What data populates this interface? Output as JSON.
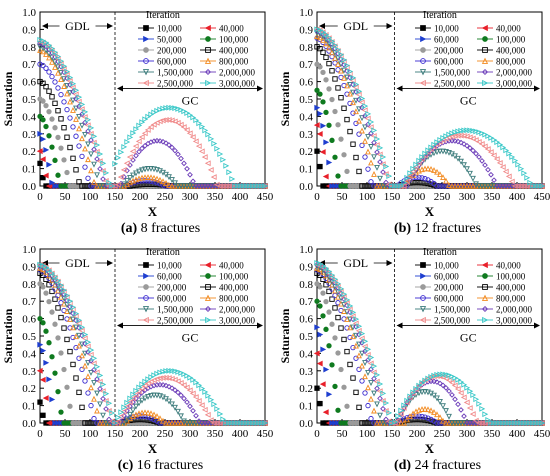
{
  "chart_data": [
    {
      "type": "scatter",
      "caption": {
        "label": "(a)",
        "text": " 8 fractures"
      },
      "xlabel": "X",
      "ylabel": "Saturation",
      "xlim": [
        0,
        450
      ],
      "ylim": [
        0,
        1.0
      ],
      "xticks": [
        "0",
        "50",
        "100",
        "150",
        "200",
        "250",
        "300",
        "350",
        "400",
        "450"
      ],
      "yticks": [
        "0.0",
        "0.1",
        "0.2",
        "0.3",
        "0.4",
        "0.5",
        "0.6",
        "0.7",
        "0.8",
        "0.9",
        "1.0"
      ],
      "legend_title": "Iteration",
      "annotations": {
        "left_region": "GDL",
        "right_region": "GC",
        "divider_x": 150
      },
      "series": [
        {
          "name": "10,000",
          "gdl_peak": 0.13,
          "gdl_end": 8,
          "gc_peak": 0.0,
          "gc_center": 250,
          "gc_width": 40
        },
        {
          "name": "40,000",
          "gdl_peak": 0.2,
          "gdl_end": 15,
          "gc_peak": 0.0,
          "gc_center": 250,
          "gc_width": 40
        },
        {
          "name": "50,000",
          "gdl_peak": 0.3,
          "gdl_end": 25,
          "gc_peak": 0.0,
          "gc_center": 250,
          "gc_width": 40
        },
        {
          "name": "100,000",
          "gdl_peak": 0.4,
          "gdl_end": 40,
          "gc_peak": 0.0,
          "gc_center": 250,
          "gc_width": 40
        },
        {
          "name": "200,000",
          "gdl_peak": 0.5,
          "gdl_end": 60,
          "gc_peak": 0.0,
          "gc_center": 250,
          "gc_width": 40
        },
        {
          "name": "400,000",
          "gdl_peak": 0.6,
          "gdl_end": 80,
          "gc_peak": 0.01,
          "gc_center": 220,
          "gc_width": 40
        },
        {
          "name": "600,000",
          "gdl_peak": 0.7,
          "gdl_end": 100,
          "gc_peak": 0.03,
          "gc_center": 210,
          "gc_width": 40
        },
        {
          "name": "800,000",
          "gdl_peak": 0.78,
          "gdl_end": 110,
          "gc_peak": 0.05,
          "gc_center": 215,
          "gc_width": 45
        },
        {
          "name": "1,500,000",
          "gdl_peak": 0.8,
          "gdl_end": 120,
          "gc_peak": 0.1,
          "gc_center": 220,
          "gc_width": 55
        },
        {
          "name": "2,000,000",
          "gdl_peak": 0.82,
          "gdl_end": 130,
          "gc_peak": 0.26,
          "gc_center": 235,
          "gc_width": 75
        },
        {
          "name": "2,500,000",
          "gdl_peak": 0.83,
          "gdl_end": 135,
          "gc_peak": 0.38,
          "gc_center": 255,
          "gc_width": 100
        },
        {
          "name": "3,000,000",
          "gdl_peak": 0.84,
          "gdl_end": 140,
          "gc_peak": 0.45,
          "gc_center": 260,
          "gc_width": 130
        }
      ]
    },
    {
      "type": "scatter",
      "caption": {
        "label": "(b)",
        "text": " 12 fractures"
      },
      "xlabel": "X",
      "ylabel": "Saturation",
      "xlim": [
        0,
        450
      ],
      "ylim": [
        0,
        1.0
      ],
      "xticks": [
        "0",
        "50",
        "100",
        "150",
        "200",
        "250",
        "300",
        "350",
        "400",
        "450"
      ],
      "yticks": [
        "0.0",
        "0.1",
        "0.2",
        "0.3",
        "0.4",
        "0.5",
        "0.6",
        "0.7",
        "0.8",
        "0.9",
        "1.0"
      ],
      "legend_title": "Iteration",
      "annotations": {
        "left_region": "GDL",
        "right_region": "GC",
        "divider_x": 155
      },
      "series": [
        {
          "name": "10,000",
          "gdl_peak": 0.2,
          "gdl_end": 10,
          "gc_peak": 0.0,
          "gc_center": 250,
          "gc_width": 40
        },
        {
          "name": "40,000",
          "gdl_peak": 0.35,
          "gdl_end": 20,
          "gc_peak": 0.0,
          "gc_center": 250,
          "gc_width": 40
        },
        {
          "name": "60,000",
          "gdl_peak": 0.45,
          "gdl_end": 30,
          "gc_peak": 0.0,
          "gc_center": 250,
          "gc_width": 40
        },
        {
          "name": "100,000",
          "gdl_peak": 0.55,
          "gdl_end": 45,
          "gc_peak": 0.0,
          "gc_center": 250,
          "gc_width": 40
        },
        {
          "name": "200,000",
          "gdl_peak": 0.7,
          "gdl_end": 65,
          "gc_peak": 0.0,
          "gc_center": 250,
          "gc_width": 40
        },
        {
          "name": "400,000",
          "gdl_peak": 0.8,
          "gdl_end": 90,
          "gc_peak": 0.02,
          "gc_center": 200,
          "gc_width": 40
        },
        {
          "name": "600,000",
          "gdl_peak": 0.85,
          "gdl_end": 110,
          "gc_peak": 0.05,
          "gc_center": 200,
          "gc_width": 40
        },
        {
          "name": "800,000",
          "gdl_peak": 0.86,
          "gdl_end": 120,
          "gc_peak": 0.1,
          "gc_center": 220,
          "gc_width": 45
        },
        {
          "name": "1,500,000",
          "gdl_peak": 0.88,
          "gdl_end": 130,
          "gc_peak": 0.2,
          "gc_center": 250,
          "gc_width": 70
        },
        {
          "name": "2,000,000",
          "gdl_peak": 0.89,
          "gdl_end": 140,
          "gc_peak": 0.26,
          "gc_center": 270,
          "gc_width": 90
        },
        {
          "name": "2,500,000",
          "gdl_peak": 0.9,
          "gdl_end": 145,
          "gc_peak": 0.29,
          "gc_center": 285,
          "gc_width": 110
        },
        {
          "name": "3,000,000",
          "gdl_peak": 0.9,
          "gdl_end": 150,
          "gc_peak": 0.32,
          "gc_center": 300,
          "gc_width": 130
        }
      ]
    },
    {
      "type": "scatter",
      "caption": {
        "label": "(c)",
        "text": " 16 fractures"
      },
      "xlabel": "X",
      "ylabel": "Saturation",
      "xlim": [
        0,
        450
      ],
      "ylim": [
        0,
        1.0
      ],
      "xticks": [
        "0",
        "50",
        "100",
        "150",
        "200",
        "250",
        "300",
        "350",
        "400",
        "450"
      ],
      "yticks": [
        "0.0",
        "0.1",
        "0.2",
        "0.3",
        "0.4",
        "0.5",
        "0.6",
        "0.7",
        "0.8",
        "0.9",
        "1.0"
      ],
      "legend_title": "Iteration",
      "annotations": {
        "left_region": "GDL",
        "right_region": "GC",
        "divider_x": 150
      },
      "series": [
        {
          "name": "10,000",
          "gdl_peak": 0.12,
          "gdl_end": 8,
          "gc_peak": 0.0,
          "gc_center": 250,
          "gc_width": 40
        },
        {
          "name": "40,000",
          "gdl_peak": 0.3,
          "gdl_end": 18,
          "gc_peak": 0.0,
          "gc_center": 250,
          "gc_width": 40
        },
        {
          "name": "60,000",
          "gdl_peak": 0.45,
          "gdl_end": 30,
          "gc_peak": 0.0,
          "gc_center": 250,
          "gc_width": 40
        },
        {
          "name": "100,000",
          "gdl_peak": 0.6,
          "gdl_end": 45,
          "gc_peak": 0.0,
          "gc_center": 250,
          "gc_width": 40
        },
        {
          "name": "200,000",
          "gdl_peak": 0.8,
          "gdl_end": 65,
          "gc_peak": 0.0,
          "gc_center": 250,
          "gc_width": 40
        },
        {
          "name": "400,000",
          "gdl_peak": 0.86,
          "gdl_end": 90,
          "gc_peak": 0.02,
          "gc_center": 200,
          "gc_width": 40
        },
        {
          "name": "600,000",
          "gdl_peak": 0.88,
          "gdl_end": 110,
          "gc_peak": 0.04,
          "gc_center": 200,
          "gc_width": 40
        },
        {
          "name": "800,000",
          "gdl_peak": 0.89,
          "gdl_end": 120,
          "gc_peak": 0.06,
          "gc_center": 210,
          "gc_width": 40
        },
        {
          "name": "1,500,000",
          "gdl_peak": 0.9,
          "gdl_end": 130,
          "gc_peak": 0.16,
          "gc_center": 230,
          "gc_width": 60
        },
        {
          "name": "2,000,000",
          "gdl_peak": 0.9,
          "gdl_end": 140,
          "gc_peak": 0.22,
          "gc_center": 240,
          "gc_width": 80
        },
        {
          "name": "2,500,000",
          "gdl_peak": 0.91,
          "gdl_end": 145,
          "gc_peak": 0.26,
          "gc_center": 250,
          "gc_width": 95
        },
        {
          "name": "3,000,000",
          "gdl_peak": 0.91,
          "gdl_end": 150,
          "gc_peak": 0.3,
          "gc_center": 260,
          "gc_width": 110
        }
      ]
    },
    {
      "type": "scatter",
      "caption": {
        "label": "(d)",
        "text": " 24 fractures"
      },
      "xlabel": "X",
      "ylabel": "Saturation",
      "xlim": [
        0,
        450
      ],
      "ylim": [
        0,
        1.0
      ],
      "xticks": [
        "0",
        "50",
        "100",
        "150",
        "200",
        "250",
        "300",
        "350",
        "400",
        "450"
      ],
      "yticks": [
        "0.0",
        "0.1",
        "0.2",
        "0.3",
        "0.4",
        "0.5",
        "0.6",
        "0.7",
        "0.8",
        "0.9",
        "1.0"
      ],
      "legend_title": "Iteration",
      "annotations": {
        "left_region": "GDL",
        "right_region": "GC",
        "divider_x": 155
      },
      "series": [
        {
          "name": "10,000",
          "gdl_peak": 0.2,
          "gdl_end": 10,
          "gc_peak": 0.0,
          "gc_center": 250,
          "gc_width": 40
        },
        {
          "name": "40,000",
          "gdl_peak": 0.4,
          "gdl_end": 20,
          "gc_peak": 0.0,
          "gc_center": 250,
          "gc_width": 40
        },
        {
          "name": "60,000",
          "gdl_peak": 0.55,
          "gdl_end": 30,
          "gc_peak": 0.0,
          "gc_center": 250,
          "gc_width": 40
        },
        {
          "name": "100,000",
          "gdl_peak": 0.7,
          "gdl_end": 45,
          "gc_peak": 0.0,
          "gc_center": 250,
          "gc_width": 40
        },
        {
          "name": "200,000",
          "gdl_peak": 0.8,
          "gdl_end": 65,
          "gc_peak": 0.0,
          "gc_center": 250,
          "gc_width": 40
        },
        {
          "name": "400,000",
          "gdl_peak": 0.86,
          "gdl_end": 90,
          "gc_peak": 0.02,
          "gc_center": 200,
          "gc_width": 40
        },
        {
          "name": "600,000",
          "gdl_peak": 0.88,
          "gdl_end": 110,
          "gc_peak": 0.04,
          "gc_center": 200,
          "gc_width": 40
        },
        {
          "name": "800,000",
          "gdl_peak": 0.89,
          "gdl_end": 120,
          "gc_peak": 0.08,
          "gc_center": 215,
          "gc_width": 40
        },
        {
          "name": "1,500,000",
          "gdl_peak": 0.9,
          "gdl_end": 130,
          "gc_peak": 0.18,
          "gc_center": 215,
          "gc_width": 55
        },
        {
          "name": "2,000,000",
          "gdl_peak": 0.91,
          "gdl_end": 140,
          "gc_peak": 0.24,
          "gc_center": 230,
          "gc_width": 70
        },
        {
          "name": "2,500,000",
          "gdl_peak": 0.91,
          "gdl_end": 145,
          "gc_peak": 0.27,
          "gc_center": 240,
          "gc_width": 80
        },
        {
          "name": "3,000,000",
          "gdl_peak": 0.92,
          "gdl_end": 150,
          "gc_peak": 0.28,
          "gc_center": 250,
          "gc_width": 95
        }
      ]
    }
  ],
  "series_styles": [
    {
      "color": "#000000",
      "marker": "square",
      "fill": true
    },
    {
      "color": "#e8202a",
      "marker": "triangle-left",
      "fill": true
    },
    {
      "color": "#1f3fd0",
      "marker": "triangle-right",
      "fill": true
    },
    {
      "color": "#0f7a1f",
      "marker": "circle",
      "fill": true
    },
    {
      "color": "#9a9a9a",
      "marker": "circle",
      "fill": true
    },
    {
      "color": "#000000",
      "marker": "square",
      "fill": false
    },
    {
      "color": "#3a2ad0",
      "marker": "circle",
      "fill": false
    },
    {
      "color": "#f28a1f",
      "marker": "triangle-up",
      "fill": false
    },
    {
      "color": "#3a7a7a",
      "marker": "triangle-down",
      "fill": false
    },
    {
      "color": "#6a3ab8",
      "marker": "diamond",
      "fill": false
    },
    {
      "color": "#f08a8a",
      "marker": "triangle-left",
      "fill": false
    },
    {
      "color": "#3ac8c8",
      "marker": "triangle-right",
      "fill": false
    }
  ]
}
